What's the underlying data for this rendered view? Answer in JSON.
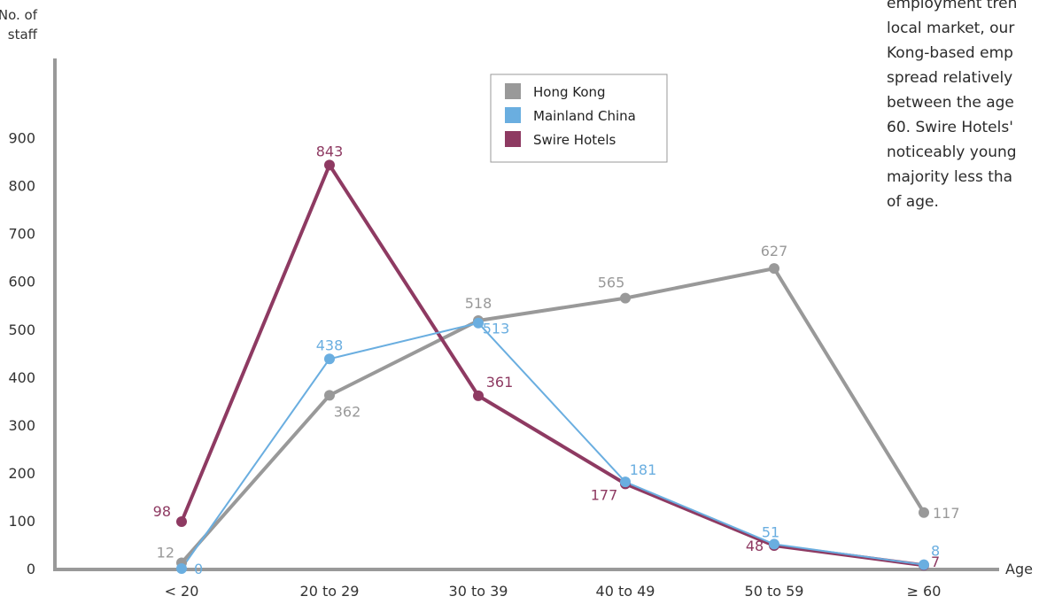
{
  "chart_data": {
    "type": "line",
    "ylabel": "No. of staff",
    "xlabel": "Age",
    "categories": [
      "< 20",
      "20 to 29",
      "30 to 39",
      "40 to 49",
      "50 to 59",
      "≥ 60"
    ],
    "y_ticks": [
      "0",
      "100",
      "200",
      "300",
      "400",
      "500",
      "600",
      "700",
      "800",
      "900"
    ],
    "ylim": [
      0,
      1000
    ],
    "grid": false,
    "legend_position": "top-center",
    "series": [
      {
        "name": "Hong Kong",
        "color": "#999999",
        "values": [
          12,
          362,
          518,
          565,
          627,
          117
        ],
        "labels": [
          "12",
          "362",
          "518",
          "565",
          "627",
          "117"
        ]
      },
      {
        "name": "Mainland China",
        "color": "#6aaee0",
        "values": [
          0,
          438,
          513,
          181,
          51,
          8
        ],
        "labels": [
          "0",
          "438",
          "513",
          "181",
          "51",
          "8"
        ]
      },
      {
        "name": "Swire Hotels",
        "color": "#8e3a62",
        "values": [
          98,
          843,
          361,
          177,
          48,
          7
        ],
        "labels": [
          "98",
          "843",
          "361",
          "177",
          "48",
          "7"
        ]
      }
    ]
  },
  "side_text": {
    "lines": [
      "employment tren",
      "local market, our",
      "Kong-based emp",
      "spread relatively",
      "between the age",
      "60. Swire Hotels'",
      "noticeably young",
      "majority less tha",
      "of age."
    ]
  }
}
